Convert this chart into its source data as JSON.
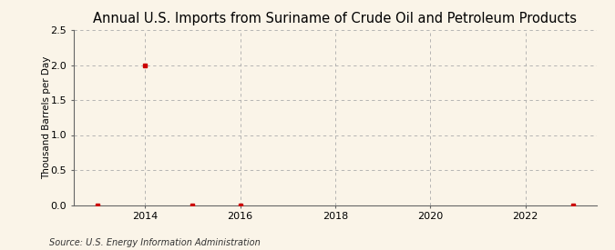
{
  "title": "Annual U.S. Imports from Suriname of Crude Oil and Petroleum Products",
  "ylabel": "Thousand Barrels per Day",
  "source": "Source: U.S. Energy Information Administration",
  "background_color": "#faf4e8",
  "plot_background_color": "#faf4e8",
  "grid_color": "#aaaaaa",
  "marker_color": "#cc0000",
  "x_data": [
    2013,
    2014,
    2015,
    2016,
    2023
  ],
  "y_data": [
    0.0,
    2.0,
    0.0,
    0.0,
    0.0
  ],
  "xlim": [
    2012.5,
    2023.5
  ],
  "ylim": [
    0.0,
    2.5
  ],
  "xticks": [
    2014,
    2016,
    2018,
    2020,
    2022
  ],
  "yticks": [
    0.0,
    0.5,
    1.0,
    1.5,
    2.0,
    2.5
  ],
  "title_fontsize": 10.5,
  "label_fontsize": 7.5,
  "tick_fontsize": 8,
  "source_fontsize": 7
}
